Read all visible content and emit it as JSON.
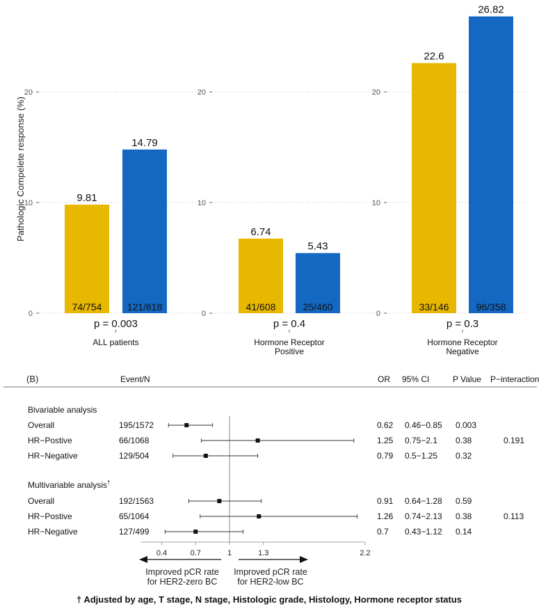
{
  "chart_data": [
    {
      "type": "bar",
      "title": "",
      "ylabel": "Pathologic Compelete response (%)",
      "ylim": [
        0,
        27.5
      ],
      "yticks": [
        "0",
        "10",
        "20"
      ],
      "grid": true,
      "colors": {
        "her2_zero": "#E8B800",
        "her2_low": "#1468C2"
      },
      "panels": [
        {
          "label": "ALL patients",
          "values": [
            9.81,
            14.79
          ],
          "value_labels": [
            "9.81",
            "14.79"
          ],
          "counts": [
            "74/754",
            "121/818"
          ],
          "p_value": "p = 0.003"
        },
        {
          "label": "Hormone Receptor\nPositive",
          "label_lines": [
            "Hormone Receptor",
            "Positive"
          ],
          "values": [
            6.74,
            5.43
          ],
          "value_labels": [
            "6.74",
            "5.43"
          ],
          "counts": [
            "41/608",
            "25/460"
          ],
          "p_value": "p = 0.4"
        },
        {
          "label": "Hormone Receptor\nNegative",
          "label_lines": [
            "Hormone Receptor",
            "Negative"
          ],
          "values": [
            22.6,
            26.82
          ],
          "value_labels": [
            "22.6",
            "26.82"
          ],
          "counts": [
            "33/146",
            "96/358"
          ],
          "p_value": "p = 0.3"
        }
      ]
    },
    {
      "type": "scatter",
      "subtype": "forest",
      "panel_label": "(B)",
      "headers": {
        "event": "Event/N",
        "or": "OR",
        "ci": "95% CI",
        "p": "P Value",
        "pint": "P−interaction"
      },
      "xlim": [
        0.1,
        2.2
      ],
      "x_ticks": [
        0.4,
        0.7,
        1,
        1.3,
        2.2
      ],
      "x_tick_labels": [
        "0.4",
        "0.7",
        "1",
        "1.3",
        "2.2"
      ],
      "reference_line": 1,
      "sections": [
        {
          "title": "Bivariable analysis",
          "rows": [
            {
              "label": "Overall",
              "events": "195/1572",
              "or": 0.62,
              "lo": 0.46,
              "hi": 0.85,
              "or_text": "0.62",
              "ci_text": "0.46−0.85",
              "p_text": "0.003",
              "pint_text": ""
            },
            {
              "label": "HR−Postive",
              "events": "66/1068",
              "or": 1.25,
              "lo": 0.75,
              "hi": 2.1,
              "or_text": "1.25",
              "ci_text": "0.75−2.1",
              "p_text": "0.38",
              "pint_text": "0.191"
            },
            {
              "label": "HR−Negative",
              "events": "129/504",
              "or": 0.79,
              "lo": 0.5,
              "hi": 1.25,
              "or_text": "0.79",
              "ci_text": "0.5−1.25",
              "p_text": "0.32",
              "pint_text": ""
            }
          ]
        },
        {
          "title": "Multivariable analysis",
          "title_mark": "†",
          "rows": [
            {
              "label": "Overall",
              "events": "192/1563",
              "or": 0.91,
              "lo": 0.64,
              "hi": 1.28,
              "or_text": "0.91",
              "ci_text": "0.64−1.28",
              "p_text": "0.59",
              "pint_text": ""
            },
            {
              "label": "HR−Postive",
              "events": "65/1064",
              "or": 1.26,
              "lo": 0.74,
              "hi": 2.13,
              "or_text": "1.26",
              "ci_text": "0.74−2.13",
              "p_text": "0.38",
              "pint_text": "0.113"
            },
            {
              "label": "HR−Negative",
              "events": "127/499",
              "or": 0.7,
              "lo": 0.43,
              "hi": 1.12,
              "or_text": "0.7",
              "ci_text": "0.43−1.12",
              "p_text": "0.14",
              "pint_text": ""
            }
          ]
        }
      ],
      "arrow_left": [
        "Improved pCR rate",
        "for HER2-zero BC"
      ],
      "arrow_right": [
        "Improved pCR rate",
        "for HER2-low BC"
      ]
    }
  ],
  "footnote": "† Adjusted by age, T stage, N stage, Histologic grade, Histology, Hormone receptor status"
}
